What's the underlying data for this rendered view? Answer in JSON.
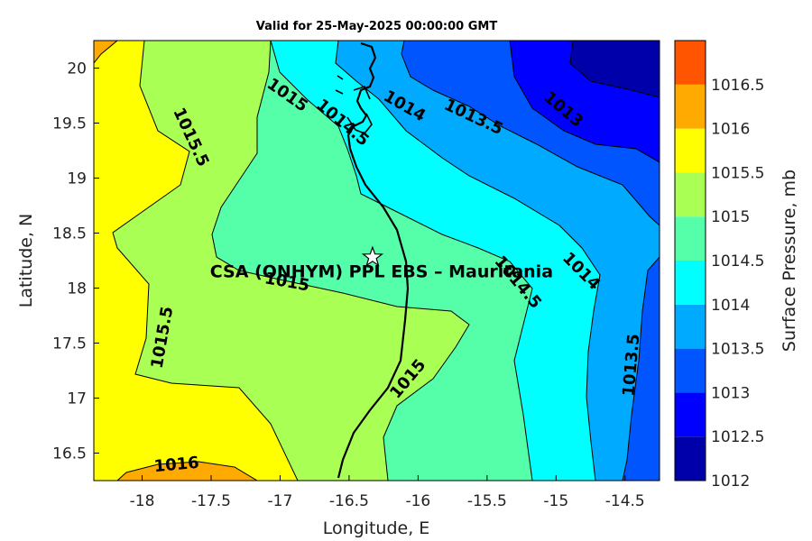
{
  "title": "Valid for 25-May-2025 00:00:00 GMT",
  "map": {
    "x_label": "Longitude, E",
    "y_label": "Latitude, N",
    "x_ticks": [
      "-18",
      "-17.5",
      "-17",
      "-16.5",
      "-16",
      "-15.5",
      "-15",
      "-14.5"
    ],
    "y_ticks": [
      "20",
      "19.5",
      "19",
      "18.5",
      "18",
      "17.5",
      "17",
      "16.5"
    ],
    "lon_range": [
      -18.35,
      -14.25
    ],
    "lat_range": [
      16.25,
      20.25
    ],
    "station": {
      "label": "CSA (ONHYM) PPL EBS  – Mauritania",
      "lon": -16.33,
      "lat": 18.28,
      "marker": "star-icon"
    },
    "contour_labels": [
      {
        "text": "1015",
        "lon": -16.95,
        "lat": 19.75
      },
      {
        "text": "1015.5",
        "lon": -17.65,
        "lat": 19.37
      },
      {
        "text": "1014.5",
        "lon": -16.55,
        "lat": 19.5
      },
      {
        "text": "1014",
        "lon": -16.1,
        "lat": 19.65
      },
      {
        "text": "1013.5",
        "lon": -15.6,
        "lat": 19.55
      },
      {
        "text": "1013",
        "lon": -14.95,
        "lat": 19.62
      },
      {
        "text": "1015.5",
        "lon": -17.85,
        "lat": 17.55
      },
      {
        "text": "1015",
        "lon": -16.95,
        "lat": 18.05
      },
      {
        "text": "1014.5",
        "lon": -15.28,
        "lat": 18.05
      },
      {
        "text": "1014",
        "lon": -14.82,
        "lat": 18.15
      },
      {
        "text": "1013.5",
        "lon": -14.45,
        "lat": 17.3
      },
      {
        "text": "1015",
        "lon": -16.07,
        "lat": 17.17
      },
      {
        "text": "1016",
        "lon": -17.75,
        "lat": 16.39
      }
    ]
  },
  "colorbar": {
    "label": "Surface Pressure, mb",
    "levels": [
      "1012",
      "1012.5",
      "1013",
      "1013.5",
      "1014",
      "1014.5",
      "1015",
      "1015.5",
      "1016",
      "1016.5"
    ],
    "colors": [
      "#0000aa",
      "#0000ff",
      "#0055ff",
      "#00aaff",
      "#00ffff",
      "#55ffaa",
      "#aaff55",
      "#ffff00",
      "#ffaa00",
      "#ff5500"
    ]
  }
}
